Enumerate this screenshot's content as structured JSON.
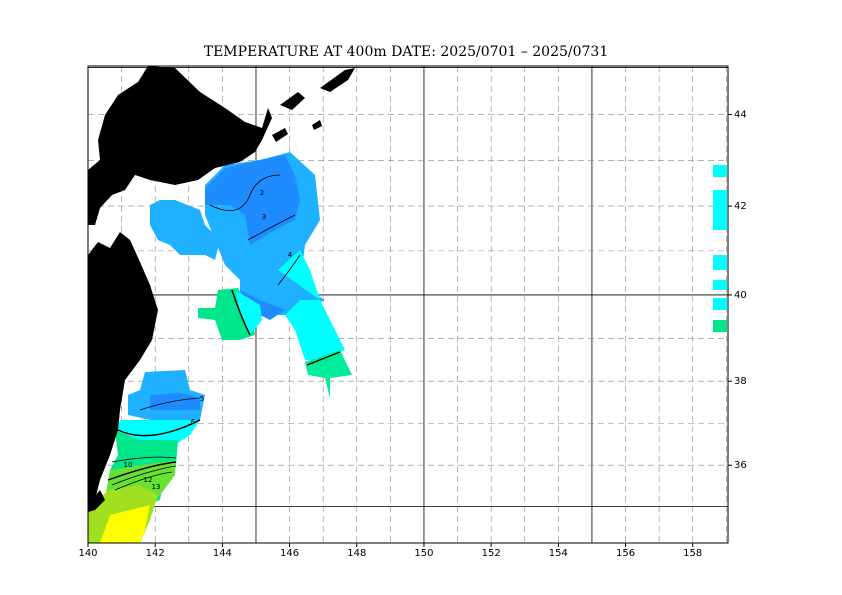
{
  "chart_data": {
    "type": "map",
    "title": "TEMPERATURE AT 400m  DATE:  2025/0701 –  2025/0731",
    "xlim": [
      140,
      159.05
    ],
    "ylim": [
      34.1,
      45.03
    ],
    "xticks": [
      140,
      142,
      144,
      146,
      148,
      150,
      152,
      154,
      156,
      158
    ],
    "yticks": [
      36,
      38,
      40,
      42,
      44
    ],
    "grid": true,
    "contour_levels": [
      2,
      3,
      4,
      5,
      6,
      10,
      12,
      13
    ]
  }
}
